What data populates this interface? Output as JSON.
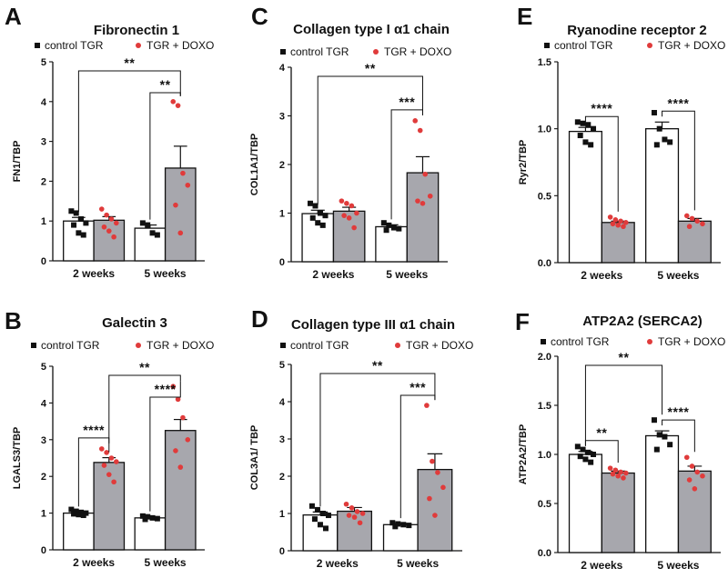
{
  "colors": {
    "control_marker": "#111111",
    "doxo_marker": "#e03b3b",
    "doxo_bar": "#a7a7ad",
    "control_bar": "#ffffff"
  },
  "chart_data": [
    {
      "panel": "A",
      "type": "bar",
      "title": "Fibronectin 1",
      "ylabel": "FN1/TBP",
      "categories": [
        "2 weeks",
        "5 weeks"
      ],
      "ylim": [
        0,
        5
      ],
      "yticks": [
        "0",
        "1",
        "2",
        "3",
        "4",
        "5"
      ],
      "legend": [
        "control TGR",
        "TGR + DOXO"
      ],
      "series": [
        {
          "name": "control TGR",
          "values": [
            1.0,
            0.82
          ],
          "sem": [
            0.09,
            0.08
          ],
          "points": [
            [
              1.25,
              1.2,
              1.05,
              0.95,
              0.9,
              0.7,
              0.65
            ],
            [
              0.95,
              0.9,
              0.7,
              0.65
            ]
          ]
        },
        {
          "name": "TGR + DOXO",
          "values": [
            1.02,
            2.33
          ],
          "sem": [
            0.09,
            0.55
          ],
          "points": [
            [
              1.3,
              1.15,
              1.05,
              0.95,
              0.85,
              0.75,
              0.6
            ],
            [
              4.0,
              3.9,
              2.2,
              1.9,
              1.4,
              0.7
            ]
          ]
        }
      ],
      "significance": [
        {
          "from": [
            0,
            0
          ],
          "to": [
            1,
            1
          ],
          "label": "**"
        },
        {
          "from": [
            1,
            0
          ],
          "to": [
            1,
            1
          ],
          "label": "**"
        }
      ]
    },
    {
      "panel": "C",
      "type": "bar",
      "title": "Collagen type I α1 chain",
      "ylabel": "COL1A1/TBP",
      "categories": [
        "2 weeks",
        "5 weeks"
      ],
      "ylim": [
        0,
        4
      ],
      "yticks": [
        "0",
        "1",
        "2",
        "3",
        "4"
      ],
      "legend": [
        "control TGR",
        "TGR + DOXO"
      ],
      "series": [
        {
          "name": "control TGR",
          "values": [
            0.99,
            0.72
          ],
          "sem": [
            0.07,
            0.04
          ],
          "points": [
            [
              1.2,
              1.15,
              1.0,
              0.95,
              0.9,
              0.8,
              0.75
            ],
            [
              0.8,
              0.75,
              0.7,
              0.68,
              0.65
            ]
          ]
        },
        {
          "name": "TGR + DOXO",
          "values": [
            1.04,
            1.83
          ],
          "sem": [
            0.08,
            0.33
          ],
          "points": [
            [
              1.25,
              1.2,
              1.15,
              1.0,
              0.95,
              0.9,
              0.7
            ],
            [
              2.9,
              2.7,
              1.8,
              1.35,
              1.25,
              1.2
            ]
          ]
        }
      ],
      "significance": [
        {
          "from": [
            0,
            0
          ],
          "to": [
            1,
            1
          ],
          "label": "**"
        },
        {
          "from": [
            1,
            0
          ],
          "to": [
            1,
            1
          ],
          "label": "***"
        }
      ]
    },
    {
      "panel": "E",
      "type": "bar",
      "title": "Ryanodine receptor 2",
      "ylabel": "Ryr2/TBP",
      "categories": [
        "2 weeks",
        "5 weeks"
      ],
      "ylim": [
        0,
        1.5
      ],
      "yticks": [
        "0.0",
        "0.5",
        "1.0",
        "1.5"
      ],
      "legend": [
        "control TGR",
        "TGR + DOXO"
      ],
      "series": [
        {
          "name": "control TGR",
          "values": [
            0.98,
            1.0
          ],
          "sem": [
            0.03,
            0.05
          ],
          "points": [
            [
              1.05,
              1.04,
              1.03,
              1.0,
              0.95,
              0.9,
              0.88
            ],
            [
              1.12,
              1.0,
              0.92,
              0.9,
              0.88
            ]
          ]
        },
        {
          "name": "TGR + DOXO",
          "values": [
            0.3,
            0.31
          ],
          "sem": [
            0.01,
            0.02
          ],
          "points": [
            [
              0.34,
              0.32,
              0.31,
              0.3,
              0.29,
              0.28,
              0.27
            ],
            [
              0.35,
              0.33,
              0.31,
              0.29,
              0.27
            ]
          ]
        }
      ],
      "significance": [
        {
          "from": [
            0,
            0
          ],
          "to": [
            0,
            1
          ],
          "label": "****"
        },
        {
          "from": [
            1,
            0
          ],
          "to": [
            1,
            1
          ],
          "label": "****"
        }
      ]
    },
    {
      "panel": "B",
      "type": "bar",
      "title": "Galectin 3",
      "ylabel": "LGALS3/TBP",
      "categories": [
        "2 weeks",
        "5 weeks"
      ],
      "ylim": [
        0,
        5
      ],
      "yticks": [
        "0",
        "1",
        "2",
        "3",
        "4",
        "5"
      ],
      "legend": [
        "control TGR",
        "TGR + DOXO"
      ],
      "series": [
        {
          "name": "control TGR",
          "values": [
            1.0,
            0.87
          ],
          "sem": [
            0.03,
            0.03
          ],
          "points": [
            [
              1.1,
              1.05,
              1.02,
              1.0,
              0.98,
              0.96,
              0.94
            ],
            [
              0.92,
              0.9,
              0.87,
              0.85,
              0.83
            ]
          ]
        },
        {
          "name": "TGR + DOXO",
          "values": [
            2.38,
            3.25
          ],
          "sem": [
            0.13,
            0.3
          ],
          "points": [
            [
              2.75,
              2.65,
              2.5,
              2.4,
              2.3,
              2.05,
              1.85
            ],
            [
              4.45,
              4.1,
              3.6,
              3.0,
              2.7,
              2.25
            ]
          ]
        }
      ],
      "significance": [
        {
          "from": [
            0,
            1
          ],
          "to": [
            1,
            1
          ],
          "label": "**"
        },
        {
          "from": [
            0,
            0
          ],
          "to": [
            0,
            1
          ],
          "label": "****"
        },
        {
          "from": [
            1,
            0
          ],
          "to": [
            1,
            1
          ],
          "label": "****"
        }
      ]
    },
    {
      "panel": "D",
      "type": "bar",
      "title": "Collagen type III α1 chain",
      "ylabel": "COL3A1/ TBP",
      "categories": [
        "2 weeks",
        "5 weeks"
      ],
      "ylim": [
        0,
        5
      ],
      "yticks": [
        "0",
        "1",
        "2",
        "3",
        "4",
        "5"
      ],
      "legend": [
        "control TGR",
        "TGR + DOXO"
      ],
      "series": [
        {
          "name": "control TGR",
          "values": [
            0.96,
            0.7
          ],
          "sem": [
            0.08,
            0.03
          ],
          "points": [
            [
              1.2,
              1.1,
              1.0,
              0.95,
              0.85,
              0.7,
              0.6
            ],
            [
              0.75,
              0.72,
              0.7,
              0.68,
              0.65
            ]
          ]
        },
        {
          "name": "TGR + DOXO",
          "values": [
            1.06,
            2.18
          ],
          "sem": [
            0.1,
            0.42
          ],
          "points": [
            [
              1.25,
              1.15,
              1.05,
              1.0,
              0.95,
              0.9,
              0.75
            ],
            [
              3.9,
              2.4,
              2.1,
              1.7,
              1.4,
              0.95
            ]
          ]
        }
      ],
      "significance": [
        {
          "from": [
            0,
            0
          ],
          "to": [
            1,
            1
          ],
          "label": "**"
        },
        {
          "from": [
            1,
            0
          ],
          "to": [
            1,
            1
          ],
          "label": "***"
        }
      ]
    },
    {
      "panel": "F",
      "type": "bar",
      "title": "ATP2A2 (SERCA2)",
      "ylabel": "ATP2A2/TBP",
      "categories": [
        "2 weeks",
        "5 weeks"
      ],
      "ylim": [
        0,
        2.0
      ],
      "yticks": [
        "0.0",
        "0.5",
        "1.0",
        "1.5",
        "2.0"
      ],
      "legend": [
        "control TGR",
        "TGR + DOXO"
      ],
      "series": [
        {
          "name": "control TGR",
          "values": [
            1.0,
            1.19
          ],
          "sem": [
            0.03,
            0.05
          ],
          "points": [
            [
              1.08,
              1.05,
              1.02,
              1.0,
              0.98,
              0.95,
              0.92
            ],
            [
              1.35,
              1.2,
              1.18,
              1.1,
              1.05
            ]
          ]
        },
        {
          "name": "TGR + DOXO",
          "values": [
            0.81,
            0.83
          ],
          "sem": [
            0.02,
            0.05
          ],
          "points": [
            [
              0.86,
              0.84,
              0.82,
              0.81,
              0.8,
              0.78,
              0.76
            ],
            [
              0.97,
              0.88,
              0.82,
              0.78,
              0.74,
              0.65
            ]
          ]
        }
      ],
      "significance": [
        {
          "from": [
            0,
            0
          ],
          "to": [
            1,
            0
          ],
          "label": "**"
        },
        {
          "from": [
            0,
            0
          ],
          "to": [
            0,
            1
          ],
          "label": "**"
        },
        {
          "from": [
            1,
            0
          ],
          "to": [
            1,
            1
          ],
          "label": "****"
        }
      ]
    }
  ]
}
